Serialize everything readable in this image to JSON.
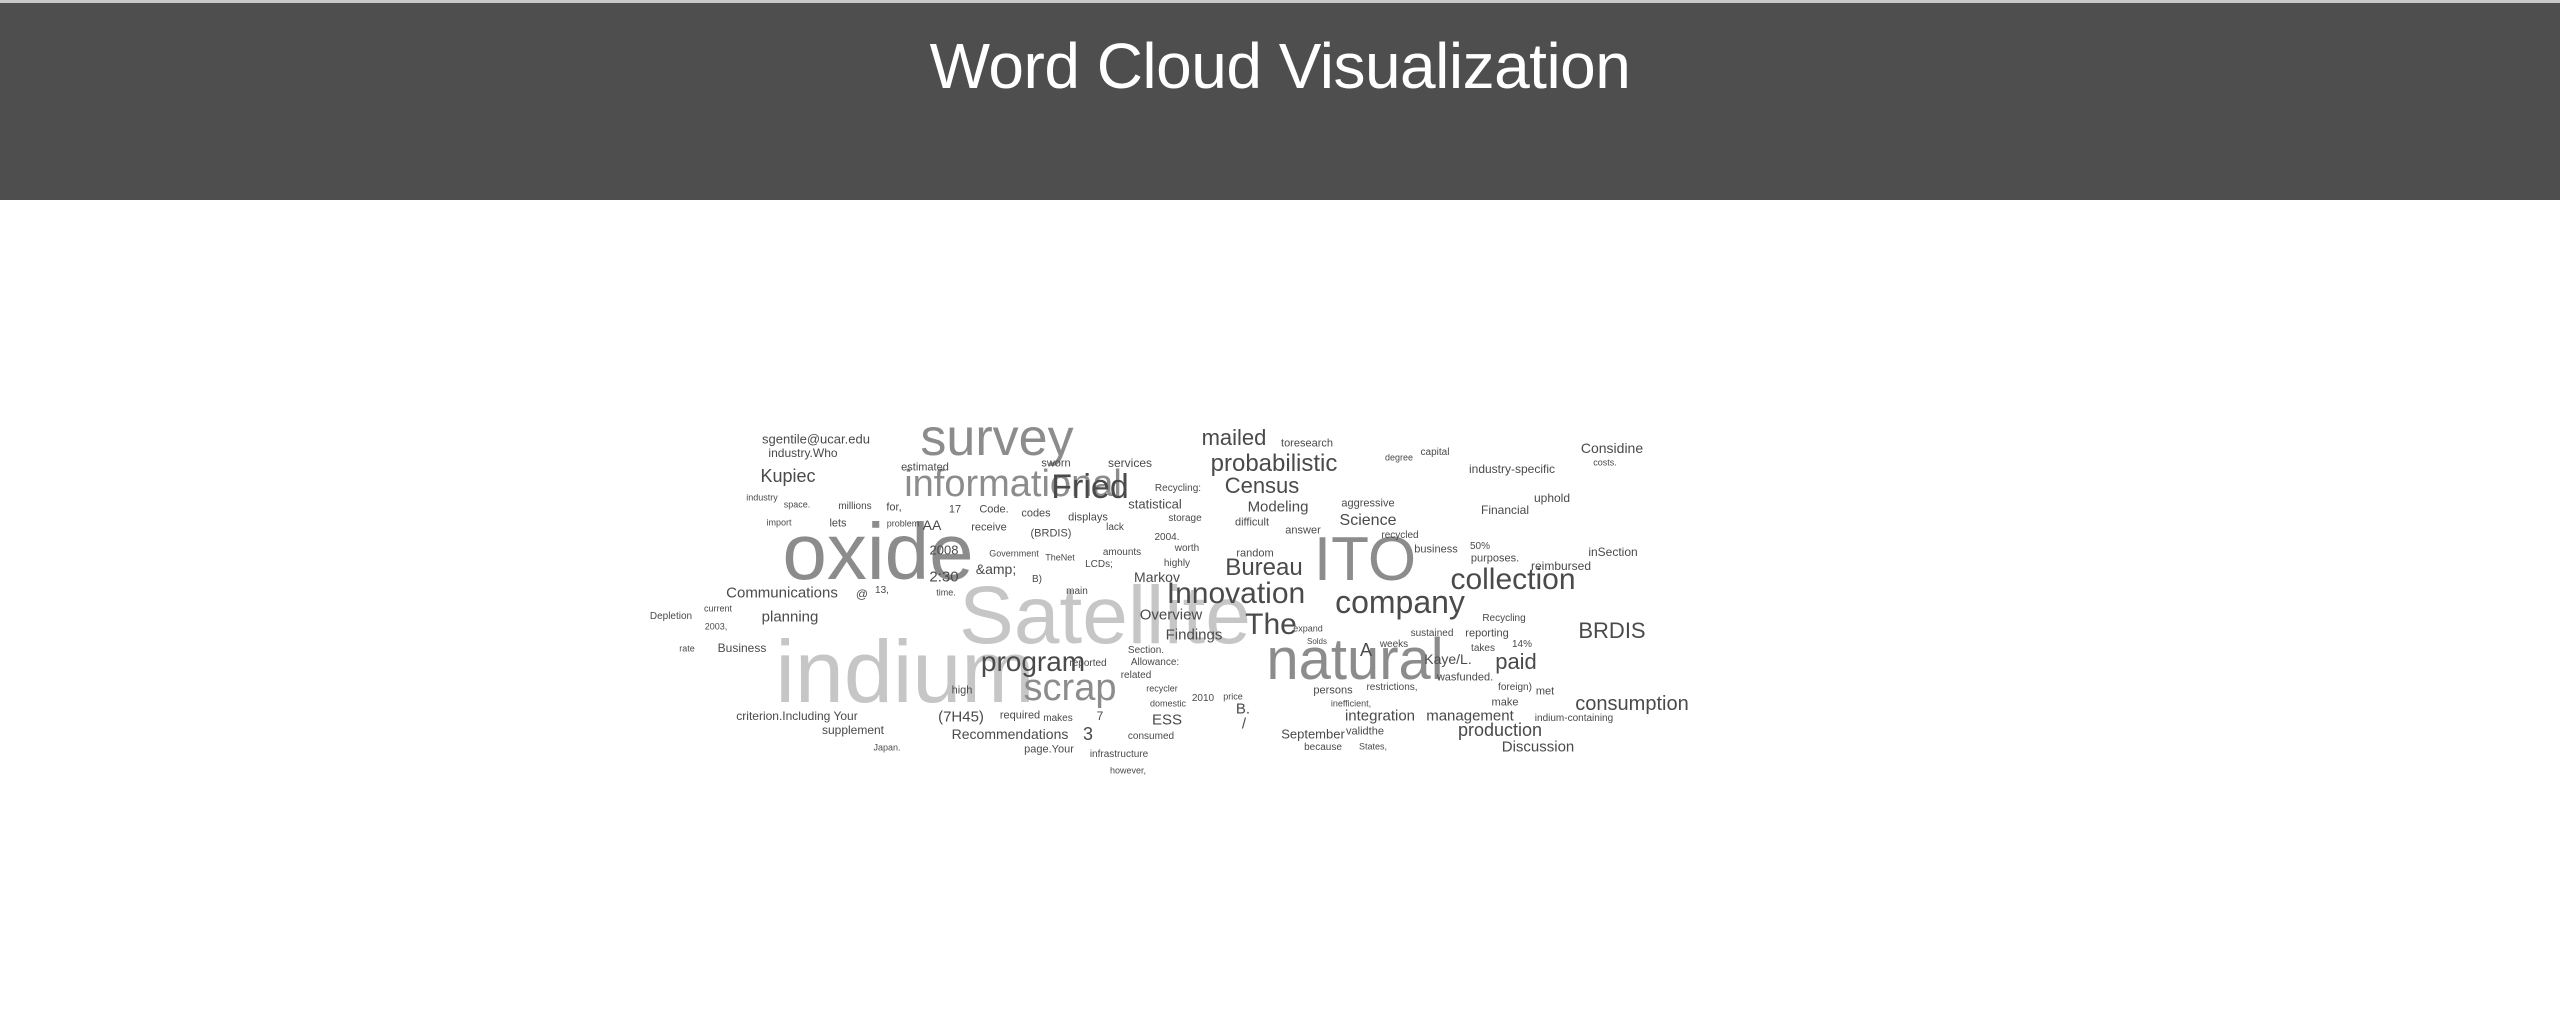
{
  "header": {
    "title": "Word Cloud Visualization",
    "background": "#4e4e4e",
    "title_color": "#ffffff"
  },
  "cloud": {
    "colors": {
      "light": "#c6c6c6",
      "mid": "#8c8c8c",
      "dark": "#4a4a4a"
    },
    "words": [
      {
        "text": "indium",
        "weight": 88,
        "tone": "light"
      },
      {
        "text": "oxide",
        "weight": 80,
        "tone": "mid"
      },
      {
        "text": "Satellite",
        "weight": 82,
        "tone": "light"
      },
      {
        "text": "ITO",
        "weight": 62,
        "tone": "mid"
      },
      {
        "text": "survey",
        "weight": 52,
        "tone": "mid"
      },
      {
        "text": "natural",
        "weight": 58,
        "tone": "mid"
      },
      {
        "text": "informational",
        "weight": 38,
        "tone": "mid"
      },
      {
        "text": "Fried",
        "weight": 34,
        "tone": "dark"
      },
      {
        "text": "scrap",
        "weight": 38,
        "tone": "mid"
      },
      {
        "text": "program",
        "weight": 28,
        "tone": "dark"
      },
      {
        "text": "Innovation",
        "weight": 30,
        "tone": "dark"
      },
      {
        "text": "company",
        "weight": 32,
        "tone": "dark"
      },
      {
        "text": "collection",
        "weight": 30,
        "tone": "dark"
      },
      {
        "text": "The",
        "weight": 30,
        "tone": "dark"
      },
      {
        "text": "Bureau",
        "weight": 24,
        "tone": "dark"
      },
      {
        "text": "probabilistic",
        "weight": 24,
        "tone": "dark"
      },
      {
        "text": "Census",
        "weight": 22,
        "tone": "dark"
      },
      {
        "text": "mailed",
        "weight": 22,
        "tone": "dark"
      },
      {
        "text": "BRDIS",
        "weight": 22,
        "tone": "dark"
      },
      {
        "text": "paid",
        "weight": 22,
        "tone": "dark"
      },
      {
        "text": "consumption",
        "weight": 20,
        "tone": "dark"
      },
      {
        "text": "Kupiec",
        "weight": 18,
        "tone": "dark"
      },
      {
        "text": "production",
        "weight": 18,
        "tone": "dark"
      },
      {
        "text": "Science",
        "weight": 16,
        "tone": "dark"
      },
      {
        "text": "integration",
        "weight": 15,
        "tone": "dark"
      },
      {
        "text": "management",
        "weight": 15,
        "tone": "dark"
      },
      {
        "text": "Discussion",
        "weight": 15,
        "tone": "dark"
      },
      {
        "text": "Communications",
        "weight": 15,
        "tone": "dark"
      },
      {
        "text": "planning",
        "weight": 15,
        "tone": "dark"
      },
      {
        "text": "Modeling",
        "weight": 15,
        "tone": "dark"
      },
      {
        "text": "Findings",
        "weight": 15,
        "tone": "dark"
      },
      {
        "text": "Overview",
        "weight": 15,
        "tone": "dark"
      },
      {
        "text": "Considine",
        "weight": 14,
        "tone": "dark"
      },
      {
        "text": "Recommendations",
        "weight": 14,
        "tone": "dark"
      },
      {
        "text": "(7H45)",
        "weight": 15,
        "tone": "dark"
      },
      {
        "text": "Markov",
        "weight": 14,
        "tone": "dark"
      },
      {
        "text": "ESS",
        "weight": 15,
        "tone": "dark"
      },
      {
        "text": "A",
        "weight": 18,
        "tone": "dark"
      },
      {
        "text": "B.",
        "weight": 15,
        "tone": "dark"
      },
      {
        "text": "/",
        "weight": 15,
        "tone": "dark"
      },
      {
        "text": "2:30",
        "weight": 15,
        "tone": "dark"
      },
      {
        "text": "2008",
        "weight": 13,
        "tone": "dark"
      },
      {
        "text": "AA",
        "weight": 14,
        "tone": "dark"
      },
      {
        "text": "&amp;",
        "weight": 14,
        "tone": "dark"
      },
      {
        "text": "Kaye/L.",
        "weight": 14,
        "tone": "dark"
      },
      {
        "text": "sgentile@ucar.edu",
        "weight": 13,
        "tone": "dark"
      },
      {
        "text": "industry.Who",
        "weight": 12,
        "tone": "dark"
      },
      {
        "text": "industry-specific",
        "weight": 12,
        "tone": "dark"
      },
      {
        "text": "statistical",
        "weight": 13,
        "tone": "dark"
      },
      {
        "text": "Business",
        "weight": 12,
        "tone": "dark"
      },
      {
        "text": "September",
        "weight": 13,
        "tone": "dark"
      },
      {
        "text": "criterion.Including Your",
        "weight": 12,
        "tone": "dark"
      },
      {
        "text": "supplement",
        "weight": 12,
        "tone": "dark"
      },
      {
        "text": "Financial",
        "weight": 12,
        "tone": "dark"
      },
      {
        "text": "uphold",
        "weight": 12,
        "tone": "dark"
      },
      {
        "text": "inSection",
        "weight": 12,
        "tone": "dark"
      },
      {
        "text": "reimbursed",
        "weight": 12,
        "tone": "dark"
      },
      {
        "text": "services",
        "weight": 12,
        "tone": "dark"
      },
      {
        "text": "estimated",
        "weight": 11,
        "tone": "dark"
      },
      {
        "text": "sworn",
        "weight": 11,
        "tone": "dark"
      },
      {
        "text": "toresearch",
        "weight": 11,
        "tone": "dark"
      },
      {
        "text": "capital",
        "weight": 10,
        "tone": "dark"
      },
      {
        "text": "degree",
        "weight": 9,
        "tone": "dark"
      },
      {
        "text": "costs.",
        "weight": 9,
        "tone": "dark"
      },
      {
        "text": "Recycling:",
        "weight": 10,
        "tone": "dark"
      },
      {
        "text": "Code.",
        "weight": 11,
        "tone": "dark"
      },
      {
        "text": "codes",
        "weight": 11,
        "tone": "dark"
      },
      {
        "text": "displays",
        "weight": 11,
        "tone": "dark"
      },
      {
        "text": "receive",
        "weight": 11,
        "tone": "dark"
      },
      {
        "text": "(BRDIS)",
        "weight": 11,
        "tone": "dark"
      },
      {
        "text": "lack",
        "weight": 10,
        "tone": "dark"
      },
      {
        "text": "storage",
        "weight": 10,
        "tone": "dark"
      },
      {
        "text": "2004.",
        "weight": 10,
        "tone": "dark"
      },
      {
        "text": "difficult",
        "weight": 11,
        "tone": "dark"
      },
      {
        "text": "answer",
        "weight": 11,
        "tone": "dark"
      },
      {
        "text": "aggressive",
        "weight": 11,
        "tone": "dark"
      },
      {
        "text": "recycled",
        "weight": 10,
        "tone": "dark"
      },
      {
        "text": "business",
        "weight": 11,
        "tone": "dark"
      },
      {
        "text": "50%",
        "weight": 10,
        "tone": "dark"
      },
      {
        "text": "purposes.",
        "weight": 11,
        "tone": "dark"
      },
      {
        "text": "random",
        "weight": 11,
        "tone": "dark"
      },
      {
        "text": "worth",
        "weight": 10,
        "tone": "dark"
      },
      {
        "text": "highly",
        "weight": 10,
        "tone": "dark"
      },
      {
        "text": "amounts",
        "weight": 10,
        "tone": "dark"
      },
      {
        "text": "LCDs;",
        "weight": 10,
        "tone": "dark"
      },
      {
        "text": "Government",
        "weight": 9,
        "tone": "dark"
      },
      {
        "text": "TheNet",
        "weight": 9,
        "tone": "dark"
      },
      {
        "text": "main",
        "weight": 10,
        "tone": "dark"
      },
      {
        "text": "B)",
        "weight": 10,
        "tone": "dark"
      },
      {
        "text": "@",
        "weight": 12,
        "tone": "dark"
      },
      {
        "text": "13,",
        "weight": 10,
        "tone": "dark"
      },
      {
        "text": "time.",
        "weight": 9,
        "tone": "dark"
      },
      {
        "text": "17",
        "weight": 11,
        "tone": "dark"
      },
      {
        "text": "for,",
        "weight": 11,
        "tone": "dark"
      },
      {
        "text": "millions",
        "weight": 10,
        "tone": "dark"
      },
      {
        "text": "lets",
        "weight": 11,
        "tone": "dark"
      },
      {
        "text": "problem",
        "weight": 9,
        "tone": "dark"
      },
      {
        "text": "space.",
        "weight": 9,
        "tone": "dark"
      },
      {
        "text": "industry",
        "weight": 9,
        "tone": "dark"
      },
      {
        "text": "import",
        "weight": 9,
        "tone": "dark"
      },
      {
        "text": "current",
        "weight": 9,
        "tone": "dark"
      },
      {
        "text": "2003,",
        "weight": 9,
        "tone": "dark"
      },
      {
        "text": "Depletion",
        "weight": 10,
        "tone": "dark"
      },
      {
        "text": "rate",
        "weight": 9,
        "tone": "dark"
      },
      {
        "text": "high",
        "weight": 11,
        "tone": "dark"
      },
      {
        "text": "required",
        "weight": 11,
        "tone": "dark"
      },
      {
        "text": "makes",
        "weight": 10,
        "tone": "dark"
      },
      {
        "text": "7",
        "weight": 12,
        "tone": "dark"
      },
      {
        "text": "3",
        "weight": 18,
        "tone": "dark"
      },
      {
        "text": "page.Your",
        "weight": 11,
        "tone": "dark"
      },
      {
        "text": "Japan.",
        "weight": 9,
        "tone": "dark"
      },
      {
        "text": "infrastructure",
        "weight": 10,
        "tone": "dark"
      },
      {
        "text": "however,",
        "weight": 9,
        "tone": "dark"
      },
      {
        "text": "consumed",
        "weight": 10,
        "tone": "dark"
      },
      {
        "text": "domestic",
        "weight": 9,
        "tone": "dark"
      },
      {
        "text": "recycler",
        "weight": 9,
        "tone": "dark"
      },
      {
        "text": "2010",
        "weight": 10,
        "tone": "dark"
      },
      {
        "text": "price",
        "weight": 9,
        "tone": "dark"
      },
      {
        "text": "related",
        "weight": 10,
        "tone": "dark"
      },
      {
        "text": "reported",
        "weight": 10,
        "tone": "dark"
      },
      {
        "text": "Allowance:",
        "weight": 10,
        "tone": "dark"
      },
      {
        "text": "Section.",
        "weight": 10,
        "tone": "dark"
      },
      {
        "text": "persons",
        "weight": 11,
        "tone": "dark"
      },
      {
        "text": "restrictions,",
        "weight": 10,
        "tone": "dark"
      },
      {
        "text": "inefficient,",
        "weight": 9,
        "tone": "dark"
      },
      {
        "text": "validthe",
        "weight": 11,
        "tone": "dark"
      },
      {
        "text": "because",
        "weight": 10,
        "tone": "dark"
      },
      {
        "text": "States,",
        "weight": 9,
        "tone": "dark"
      },
      {
        "text": "weeks",
        "weight": 10,
        "tone": "dark"
      },
      {
        "text": "sustained",
        "weight": 10,
        "tone": "dark"
      },
      {
        "text": "takes",
        "weight": 10,
        "tone": "dark"
      },
      {
        "text": "reporting",
        "weight": 11,
        "tone": "dark"
      },
      {
        "text": "14%",
        "weight": 10,
        "tone": "dark"
      },
      {
        "text": "Recycling",
        "weight": 10,
        "tone": "dark"
      },
      {
        "text": "wasfunded.",
        "weight": 11,
        "tone": "dark"
      },
      {
        "text": "foreign)",
        "weight": 10,
        "tone": "dark"
      },
      {
        "text": "make",
        "weight": 11,
        "tone": "dark"
      },
      {
        "text": "met",
        "weight": 11,
        "tone": "dark"
      },
      {
        "text": "indium-containing",
        "weight": 10,
        "tone": "dark"
      },
      {
        "text": "expand",
        "weight": 9,
        "tone": "dark"
      },
      {
        "text": "Solds",
        "weight": 8,
        "tone": "dark"
      }
    ]
  }
}
